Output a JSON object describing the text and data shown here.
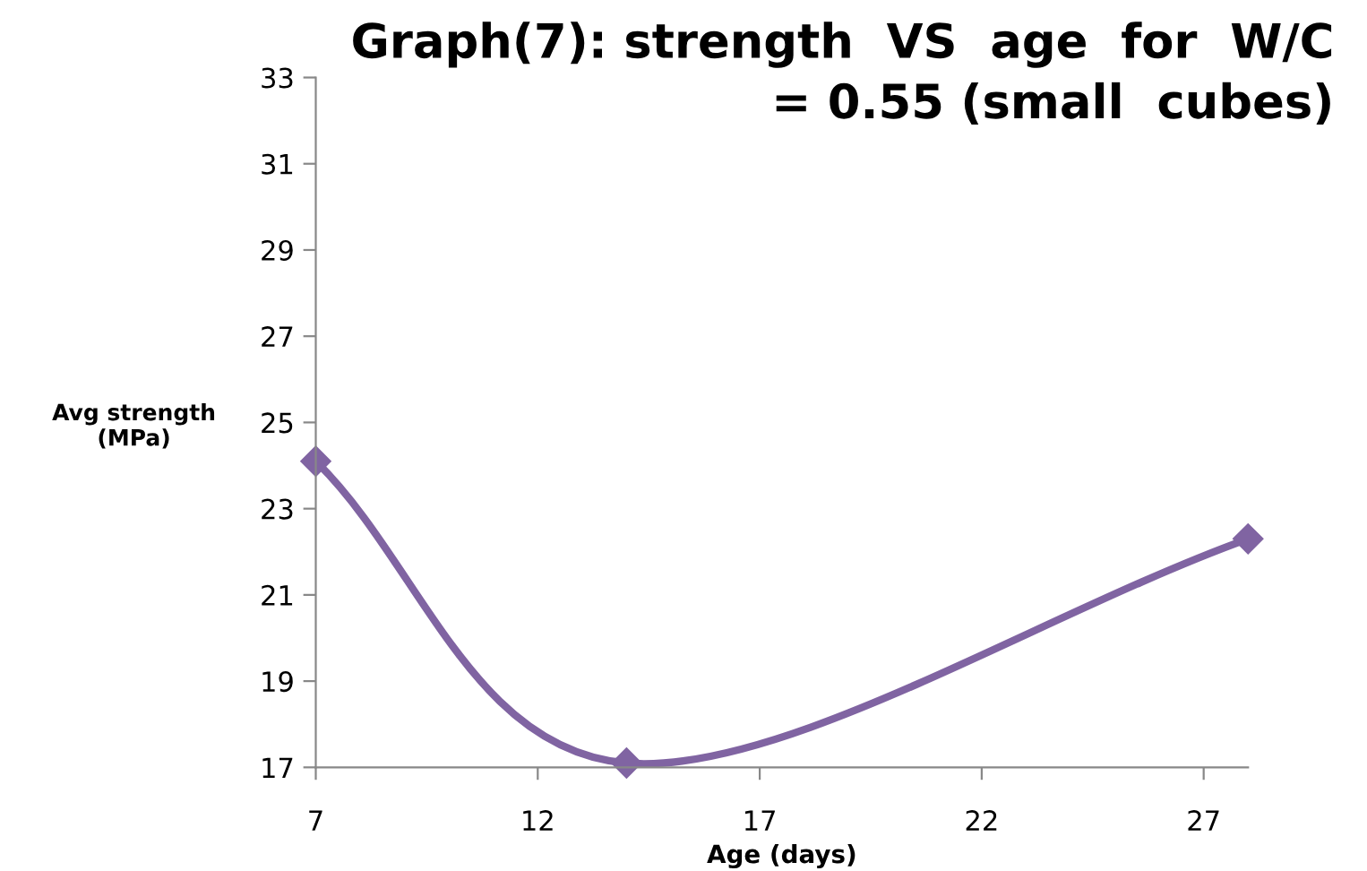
{
  "chart_data": {
    "type": "line",
    "title": "Graph(7): strength  VS  age  for  W/C\n= 0.55 (small  cubes)",
    "xlabel": "Age (days)",
    "ylabel": "Avg strength\n(MPa)",
    "x": [
      7,
      14,
      28
    ],
    "series": [
      {
        "color": "#8064a2",
        "values": [
          24.1,
          17.1,
          22.3
        ]
      }
    ],
    "xlim": [
      7,
      28
    ],
    "xticks": [
      7,
      12,
      17,
      22,
      27
    ],
    "ylim": [
      17,
      33
    ],
    "yticks": [
      17,
      19,
      21,
      23,
      25,
      27,
      29,
      31,
      33
    ],
    "marker": "diamond",
    "line_style": "solid",
    "grid": false,
    "legend": false
  }
}
